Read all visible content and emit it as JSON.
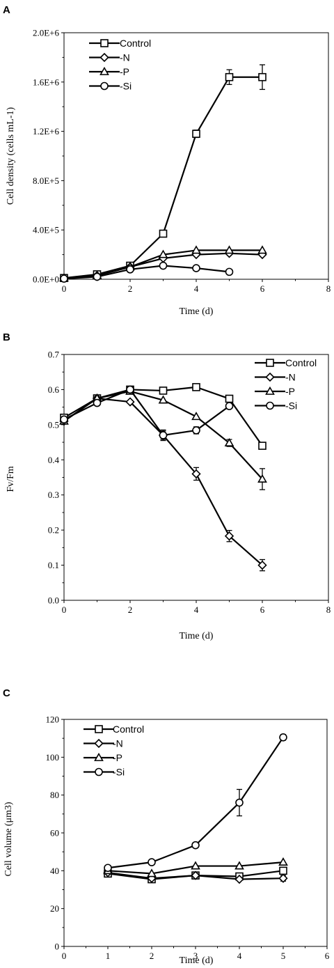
{
  "chart_data": [
    {
      "panel": "A",
      "type": "line",
      "xlabel": "Time (d)",
      "ylabel": "Cell density (cells mL-1)",
      "xlim": [
        0,
        8
      ],
      "ylim": [
        0,
        2000000
      ],
      "x_ticks": [
        "0",
        "2",
        "4",
        "6",
        "8"
      ],
      "y_ticks": [
        "0.0E+0",
        "4.0E+5",
        "8.0E+5",
        "1.2E+6",
        "1.6E+6",
        "2.0E+6"
      ],
      "legend_position": "top-left",
      "series": [
        {
          "name": "Control",
          "marker": "square",
          "x": [
            0,
            1,
            2,
            3,
            4,
            5,
            6
          ],
          "y": [
            10000,
            40000,
            110000,
            370000,
            1180000,
            1640000,
            1640000
          ],
          "err": [
            0,
            0,
            0,
            0,
            30000,
            60000,
            100000
          ]
        },
        {
          "name": "-N",
          "marker": "diamond",
          "x": [
            0,
            1,
            2,
            3,
            4,
            5,
            6
          ],
          "y": [
            10000,
            30000,
            100000,
            170000,
            200000,
            210000,
            200000
          ],
          "err": [
            0,
            0,
            0,
            0,
            0,
            0,
            10000
          ]
        },
        {
          "name": "-P",
          "marker": "triangle",
          "x": [
            0,
            1,
            2,
            3,
            4,
            5,
            6
          ],
          "y": [
            10000,
            30000,
            100000,
            200000,
            235000,
            235000,
            235000
          ],
          "err": [
            0,
            0,
            0,
            0,
            0,
            0,
            0
          ]
        },
        {
          "name": "-Si",
          "marker": "circle",
          "x": [
            0,
            1,
            2,
            3,
            4,
            5
          ],
          "y": [
            5000,
            20000,
            80000,
            110000,
            90000,
            60000
          ],
          "err": [
            0,
            0,
            0,
            0,
            0,
            0
          ]
        }
      ]
    },
    {
      "panel": "B",
      "type": "line",
      "xlabel": "Time (d)",
      "ylabel": "Fv/Fm",
      "xlim": [
        0,
        8
      ],
      "ylim": [
        0,
        0.7
      ],
      "x_ticks": [
        "0",
        "2",
        "4",
        "6",
        "8"
      ],
      "y_ticks": [
        "0.0",
        "0.1",
        "0.2",
        "0.3",
        "0.4",
        "0.5",
        "0.6",
        "0.7"
      ],
      "legend_position": "top-right",
      "series": [
        {
          "name": "Control",
          "marker": "square",
          "x": [
            0,
            1,
            2,
            3,
            4,
            5,
            6
          ],
          "y": [
            0.52,
            0.575,
            0.6,
            0.597,
            0.607,
            0.574,
            0.44
          ],
          "err": [
            0,
            0,
            0,
            0,
            0.006,
            0.006,
            0.008
          ]
        },
        {
          "name": "-N",
          "marker": "diamond",
          "x": [
            0,
            1,
            2,
            3,
            4,
            5,
            6
          ],
          "y": [
            0.51,
            0.575,
            0.565,
            0.47,
            0.36,
            0.183,
            0.1
          ],
          "err": [
            0,
            0,
            0,
            0.015,
            0.018,
            0.016,
            0.016
          ]
        },
        {
          "name": "-P",
          "marker": "triangle",
          "x": [
            0,
            1,
            2,
            3,
            4,
            5,
            6
          ],
          "y": [
            0.51,
            0.575,
            0.595,
            0.57,
            0.523,
            0.448,
            0.345
          ],
          "err": [
            0,
            0,
            0,
            0,
            0,
            0.01,
            0.03
          ]
        },
        {
          "name": "-Si",
          "marker": "circle",
          "x": [
            0,
            1,
            2,
            3,
            4,
            5
          ],
          "y": [
            0.515,
            0.562,
            0.6,
            0.47,
            0.484,
            0.553
          ],
          "err": [
            0,
            0,
            0,
            0.012,
            0.01,
            0
          ]
        }
      ]
    },
    {
      "panel": "C",
      "type": "line",
      "xlabel": "Time (d)",
      "ylabel": "Cell volume (μm3)",
      "xlim": [
        0,
        6
      ],
      "ylim": [
        0,
        120
      ],
      "x_ticks": [
        "0",
        "1",
        "2",
        "3",
        "4",
        "5",
        "6"
      ],
      "y_ticks": [
        "0",
        "20",
        "40",
        "60",
        "80",
        "100",
        "120"
      ],
      "legend_position": "top-left",
      "series": [
        {
          "name": "Control",
          "marker": "square",
          "x": [
            1,
            2,
            3,
            4,
            5
          ],
          "y": [
            38.5,
            35.5,
            37.5,
            37,
            40
          ],
          "err": [
            0,
            0,
            0,
            0,
            0
          ]
        },
        {
          "name": "-N",
          "marker": "diamond",
          "x": [
            1,
            2,
            3,
            4,
            5
          ],
          "y": [
            39,
            36,
            37.5,
            35.5,
            36
          ],
          "err": [
            0,
            0,
            0,
            0,
            1.5
          ]
        },
        {
          "name": "-P",
          "marker": "triangle",
          "x": [
            1,
            2,
            3,
            4,
            5
          ],
          "y": [
            40,
            38.5,
            42.5,
            42.5,
            44.5
          ],
          "err": [
            0,
            0,
            0,
            0,
            0
          ]
        },
        {
          "name": "-Si",
          "marker": "circle",
          "x": [
            1,
            2,
            3,
            4,
            5
          ],
          "y": [
            41.5,
            44.5,
            53.5,
            76,
            110.5
          ],
          "err": [
            0,
            0,
            0,
            7,
            1.5
          ]
        }
      ]
    }
  ]
}
